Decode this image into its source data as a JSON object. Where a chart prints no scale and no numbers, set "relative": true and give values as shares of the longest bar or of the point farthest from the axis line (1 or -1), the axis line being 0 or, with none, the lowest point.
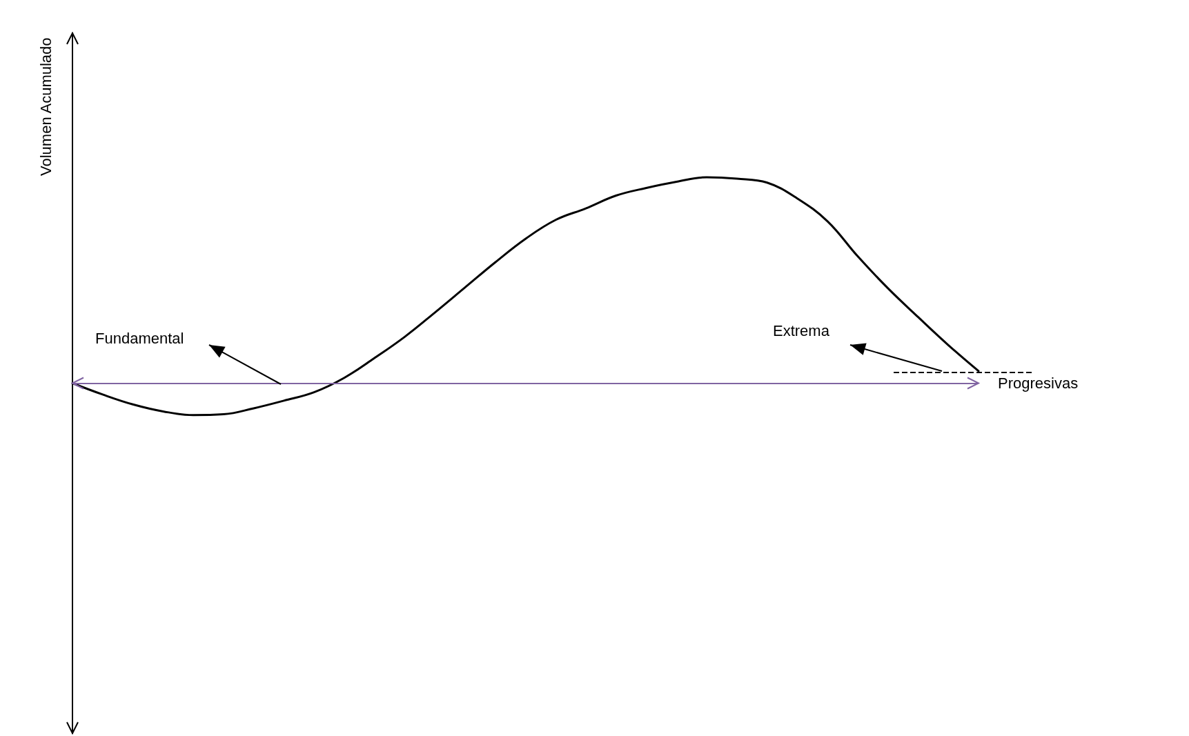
{
  "chart_data": {
    "type": "line",
    "relative": true,
    "xlabel": "Progresivas",
    "ylabel": "Volumen  Acumulado",
    "categories": [
      null,
      null,
      null,
      null,
      null,
      null,
      null,
      null,
      null,
      null,
      null,
      null,
      null,
      null,
      null,
      null,
      null,
      null,
      null,
      null,
      null,
      null,
      null,
      null,
      null,
      null,
      null,
      null,
      null,
      null,
      null
    ],
    "series": [
      {
        "color": "#000000",
        "values": [
          0,
          -0.055,
          -0.103,
          -0.137,
          -0.155,
          -0.151,
          -0.122,
          -0.085,
          -0.044,
          0.026,
          0.122,
          0.225,
          0.343,
          0.465,
          0.587,
          0.701,
          0.793,
          0.849,
          0.911,
          0.948,
          0.978,
          1,
          0.993,
          0.974,
          0.897,
          0.786,
          0.616,
          0.461,
          0.321,
          0.185,
          0.059
        ]
      }
    ],
    "annotations": [
      "Fundamental",
      "Extrema"
    ],
    "ref_lines": [
      {
        "axis": "y",
        "value": 0,
        "color": "#8064a2"
      }
    ],
    "marker": "none",
    "line_style": "solid",
    "grid": false
  }
}
